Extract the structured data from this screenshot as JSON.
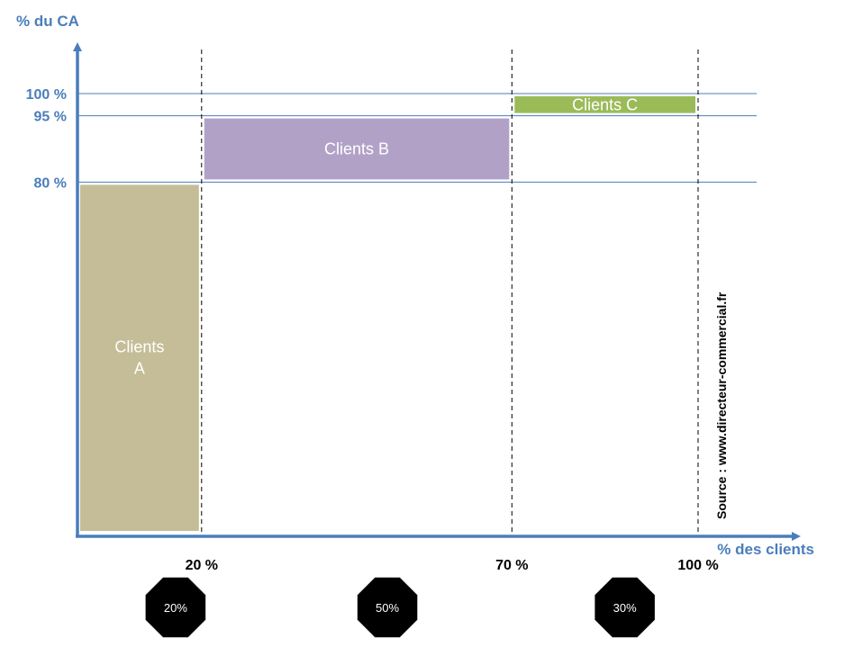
{
  "chart_data": {
    "type": "bar",
    "xlabel": "% des clients",
    "ylabel": "% du CA",
    "x_ticks": [
      {
        "value": 20,
        "label": "20 %"
      },
      {
        "value": 70,
        "label": "70 %"
      },
      {
        "value": 100,
        "label": "100 %"
      }
    ],
    "y_ticks": [
      {
        "value": 80,
        "label": "80 %"
      },
      {
        "value": 95,
        "label": "95 %"
      },
      {
        "value": 100,
        "label": "100 %"
      }
    ],
    "segments": [
      {
        "name": "Clients A",
        "label_lines": [
          "Clients",
          "A"
        ],
        "x_start": 0,
        "x_end": 20,
        "y_start": 0,
        "y_end": 80,
        "color": "#c4bd97"
      },
      {
        "name": "Clients B",
        "label_lines": [
          "Clients B"
        ],
        "x_start": 20,
        "x_end": 70,
        "y_start": 80,
        "y_end": 95,
        "color": "#b2a1c7"
      },
      {
        "name": "Clients C",
        "label_lines": [
          "Clients C"
        ],
        "x_start": 70,
        "x_end": 100,
        "y_start": 95,
        "y_end": 100,
        "color": "#9bbb59"
      }
    ],
    "badges": [
      {
        "label": "20%",
        "x": 10
      },
      {
        "label": "50%",
        "x": 45
      },
      {
        "label": "30%",
        "x": 85
      }
    ],
    "source": "Source : www.directeur-commercial.fr",
    "axis_color": "#4a7ebb",
    "line_color": "#4a7ebb"
  }
}
